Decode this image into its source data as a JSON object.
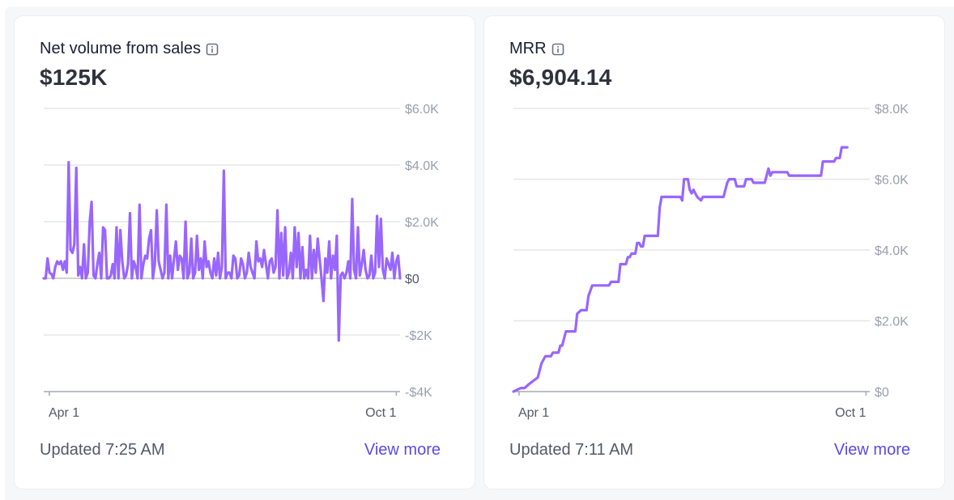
{
  "cards": [
    {
      "title": "Net volume from sales",
      "value": "$125K",
      "updated": "Updated 7:25 AM",
      "view_more": "View more"
    },
    {
      "title": "MRR",
      "value": "$6,904.14",
      "updated": "Updated 7:11 AM",
      "view_more": "View more"
    }
  ],
  "info_icon": "info-icon",
  "colors": {
    "accent": "#9966ff",
    "link": "#5a4be8",
    "grid": "#e3e5ea",
    "axis": "#9a9fad"
  },
  "chart_data": [
    {
      "type": "line",
      "ylim": [
        -4000,
        6000
      ],
      "yticks": [
        -4000,
        -2000,
        0,
        2000,
        4000,
        6000
      ],
      "ytick_labels": [
        "-$4K",
        "-$2K",
        "$0",
        "$2.0K",
        "$4.0K",
        "$6.0K"
      ],
      "xlim": [
        0,
        190
      ],
      "xticks": [
        3,
        188
      ],
      "xtick_labels": [
        "Apr 1",
        "Oct 1"
      ],
      "grid": true,
      "series": [
        {
          "values": [
            0,
            0,
            700,
            200,
            150,
            0,
            400,
            600,
            500,
            600,
            300,
            600,
            200,
            4100,
            1000,
            900,
            1200,
            3900,
            100,
            400,
            0,
            1200,
            0,
            200,
            2000,
            2700,
            100,
            0,
            500,
            900,
            0,
            1800,
            1700,
            0,
            0,
            100,
            500,
            0,
            1800,
            0,
            1700,
            600,
            0,
            100,
            500,
            2300,
            0,
            600,
            400,
            0,
            2600,
            0,
            500,
            800,
            700,
            1400,
            1700,
            0,
            500,
            2400,
            600,
            300,
            0,
            200,
            2600,
            0,
            800,
            0,
            700,
            1300,
            300,
            800,
            700,
            0,
            2000,
            0,
            200,
            1400,
            0,
            200,
            1500,
            300,
            700,
            0,
            1300,
            400,
            600,
            200,
            0,
            700,
            100,
            900,
            0,
            400,
            3800,
            0,
            200,
            200,
            0,
            800,
            700,
            0,
            100,
            700,
            500,
            0,
            200,
            900,
            400,
            200,
            0,
            1300,
            600,
            700,
            400,
            1000,
            500,
            0,
            600,
            700,
            200,
            400,
            2400,
            0,
            1600,
            100,
            1800,
            0,
            200,
            900,
            0,
            1800,
            400,
            1600,
            0,
            1100,
            0,
            300,
            0,
            1500,
            0,
            1000,
            200,
            1400,
            700,
            0,
            -800,
            700,
            200,
            1300,
            0,
            800,
            300,
            1500,
            -2200,
            100,
            200,
            0,
            200,
            600,
            0,
            2800,
            300,
            0,
            1800,
            100,
            500,
            1000,
            300,
            0,
            100,
            800,
            0,
            200,
            2200,
            400,
            2100,
            300,
            0,
            700,
            500,
            300,
            900,
            0,
            600,
            800,
            0
          ]
        }
      ]
    },
    {
      "type": "line",
      "ylim": [
        0,
        8000
      ],
      "yticks": [
        0,
        2000,
        4000,
        6000,
        8000
      ],
      "ytick_labels": [
        "$0",
        "$2.0K",
        "$4.0K",
        "$6.0K",
        "$8.0K"
      ],
      "xlim": [
        0,
        190
      ],
      "xticks": [
        3,
        188
      ],
      "xtick_labels": [
        "Apr 1",
        "Oct 1"
      ],
      "grid": true,
      "series": [
        {
          "points": [
            [
              0,
              0
            ],
            [
              4,
              100
            ],
            [
              6,
              100
            ],
            [
              8,
              200
            ],
            [
              13,
              400
            ],
            [
              15,
              800
            ],
            [
              17,
              1000
            ],
            [
              20,
              1000
            ],
            [
              21,
              1100
            ],
            [
              24,
              1100
            ],
            [
              25,
              1300
            ],
            [
              26,
              1300
            ],
            [
              28,
              1700
            ],
            [
              33,
              1700
            ],
            [
              34,
              2200
            ],
            [
              36,
              2300
            ],
            [
              39,
              2300
            ],
            [
              40,
              2700
            ],
            [
              42,
              3000
            ],
            [
              51,
              3000
            ],
            [
              52,
              3100
            ],
            [
              56,
              3100
            ],
            [
              57,
              3600
            ],
            [
              60,
              3600
            ],
            [
              61,
              3800
            ],
            [
              62,
              3800
            ],
            [
              63,
              3900
            ],
            [
              65,
              3900
            ],
            [
              66,
              4200
            ],
            [
              67,
              4200
            ],
            [
              68,
              4100
            ],
            [
              69,
              4100
            ],
            [
              70,
              4400
            ],
            [
              77,
              4400
            ],
            [
              78,
              5200
            ],
            [
              79,
              5500
            ],
            [
              89,
              5500
            ],
            [
              90,
              5400
            ],
            [
              91,
              6000
            ],
            [
              93,
              6000
            ],
            [
              94,
              5700
            ],
            [
              95,
              5600
            ],
            [
              96,
              5700
            ],
            [
              98,
              5500
            ],
            [
              100,
              5400
            ],
            [
              101,
              5500
            ],
            [
              112,
              5500
            ],
            [
              114,
              5900
            ],
            [
              115,
              6000
            ],
            [
              118,
              6000
            ],
            [
              119,
              5800
            ],
            [
              123,
              5800
            ],
            [
              124,
              6000
            ],
            [
              127,
              6000
            ],
            [
              128,
              5900
            ],
            [
              134,
              5900
            ],
            [
              136,
              6300
            ],
            [
              137,
              6100
            ],
            [
              138,
              6200
            ],
            [
              146,
              6200
            ],
            [
              147,
              6100
            ],
            [
              164,
              6100
            ],
            [
              165,
              6500
            ],
            [
              171,
              6500
            ],
            [
              172,
              6600
            ],
            [
              174,
              6600
            ],
            [
              175,
              6900
            ],
            [
              178,
              6900
            ]
          ]
        }
      ]
    }
  ]
}
